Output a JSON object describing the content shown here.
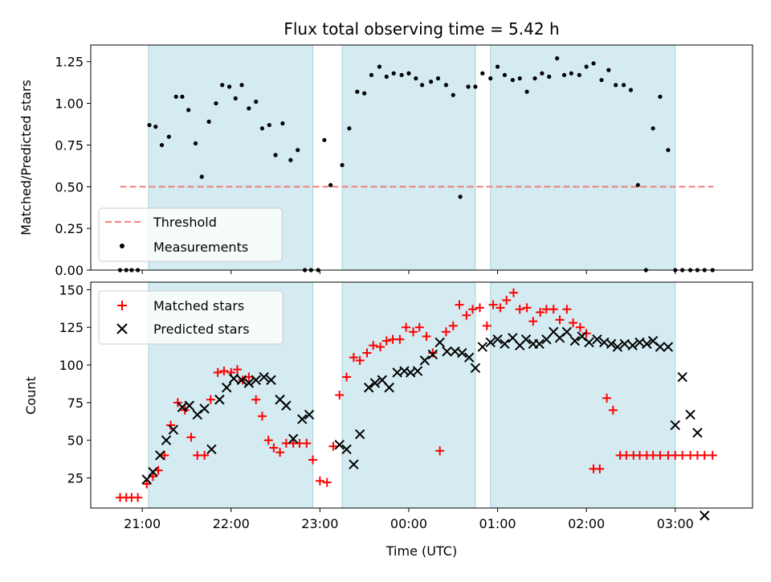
{
  "chart_data": [
    {
      "type": "scatter",
      "title": "Flux total observing time = 5.42 h",
      "xlabel": "",
      "ylabel": "Matched/Predicted stars",
      "ylim": [
        0,
        1.35
      ],
      "yticks": [
        "0.00",
        "0.25",
        "0.50",
        "0.75",
        "1.00",
        "1.25"
      ],
      "ytick_values": [
        0,
        0.25,
        0.5,
        0.75,
        1.0,
        1.25
      ],
      "legend_position": "lower-left",
      "threshold": {
        "name": "Threshold",
        "value": 0.5,
        "x_range": [
          20.75,
          27.43
        ],
        "color": "#f08080"
      },
      "shaded_intervals": [
        [
          21.07,
          22.92
        ],
        [
          23.25,
          24.75
        ],
        [
          24.92,
          27.0
        ]
      ],
      "shade_color": "#d3ebf1",
      "series": [
        {
          "name": "Measurements",
          "color": "#000000",
          "marker": "dot",
          "x": [
            20.75,
            20.82,
            20.88,
            20.95,
            21.08,
            21.15,
            21.22,
            21.3,
            21.38,
            21.45,
            21.52,
            21.6,
            21.67,
            21.75,
            21.83,
            21.9,
            21.98,
            22.05,
            22.12,
            22.2,
            22.28,
            22.35,
            22.43,
            22.5,
            22.58,
            22.67,
            22.75,
            22.83,
            22.9,
            22.98,
            23.05,
            23.12,
            23.25,
            23.33,
            23.42,
            23.5,
            23.58,
            23.67,
            23.75,
            23.83,
            23.92,
            24.0,
            24.08,
            24.15,
            24.25,
            24.33,
            24.42,
            24.5,
            24.58,
            24.67,
            24.75,
            24.83,
            24.92,
            25.0,
            25.08,
            25.17,
            25.25,
            25.33,
            25.42,
            25.5,
            25.58,
            25.67,
            25.75,
            25.83,
            25.92,
            26.0,
            26.08,
            26.17,
            26.25,
            26.33,
            26.42,
            26.5,
            26.58,
            26.67,
            26.75,
            26.83,
            26.92,
            27.0,
            27.08,
            27.17,
            27.25,
            27.33,
            27.42
          ],
          "y": [
            0,
            0,
            0,
            0,
            0.87,
            0.86,
            0.75,
            0.8,
            1.04,
            1.04,
            0.96,
            0.76,
            0.56,
            0.89,
            1.0,
            1.11,
            1.1,
            1.03,
            1.11,
            0.97,
            1.01,
            0.85,
            0.87,
            0.69,
            0.88,
            0.66,
            0.72,
            0,
            0,
            0,
            0.78,
            0.51,
            0.63,
            0.85,
            1.07,
            1.06,
            1.17,
            1.22,
            1.16,
            1.18,
            1.17,
            1.18,
            1.15,
            1.11,
            1.13,
            1.15,
            1.11,
            1.05,
            0.44,
            1.1,
            1.1,
            1.18,
            1.15,
            1.22,
            1.17,
            1.14,
            1.15,
            1.07,
            1.15,
            1.18,
            1.16,
            1.27,
            1.17,
            1.18,
            1.17,
            1.22,
            1.24,
            1.14,
            1.2,
            1.11,
            1.11,
            1.08,
            0.51,
            0,
            0.85,
            1.04,
            0.72,
            0,
            0,
            0,
            0,
            0,
            0
          ]
        }
      ]
    },
    {
      "type": "scatter",
      "xlabel": "Time (UTC)",
      "ylabel": "Count",
      "xlim": [
        20.42,
        27.87
      ],
      "ylim": [
        5,
        155
      ],
      "xticks": [
        "21:00",
        "22:00",
        "23:00",
        "00:00",
        "01:00",
        "02:00",
        "03:00"
      ],
      "xtick_values": [
        21,
        22,
        23,
        24,
        25,
        26,
        27
      ],
      "yticks": [
        "25",
        "50",
        "75",
        "100",
        "125",
        "150"
      ],
      "ytick_values": [
        25,
        50,
        75,
        100,
        125,
        150
      ],
      "legend_position": "top-left",
      "shaded_intervals": [
        [
          21.07,
          22.92
        ],
        [
          23.25,
          24.75
        ],
        [
          24.92,
          27.0
        ]
      ],
      "shade_color": "#d3ebf1",
      "series": [
        {
          "name": "Matched stars",
          "color": "#ff0000",
          "marker": "plus",
          "x": [
            20.75,
            20.82,
            20.88,
            20.95,
            21.05,
            21.12,
            21.18,
            21.25,
            21.32,
            21.4,
            21.48,
            21.55,
            21.62,
            21.7,
            21.77,
            21.85,
            21.92,
            22.0,
            22.07,
            22.13,
            22.2,
            22.28,
            22.35,
            22.42,
            22.48,
            22.55,
            22.62,
            22.7,
            22.77,
            22.85,
            22.92,
            23.0,
            23.08,
            23.15,
            23.22,
            23.3,
            23.38,
            23.45,
            23.53,
            23.6,
            23.68,
            23.75,
            23.82,
            23.9,
            23.97,
            24.05,
            24.12,
            24.2,
            24.27,
            24.35,
            24.42,
            24.5,
            24.57,
            24.65,
            24.72,
            24.8,
            24.88,
            24.95,
            25.03,
            25.1,
            25.18,
            25.25,
            25.33,
            25.4,
            25.48,
            25.55,
            25.63,
            25.7,
            25.78,
            25.85,
            25.93,
            26.0,
            26.08,
            26.15,
            26.23,
            26.3,
            26.38,
            26.45,
            26.53,
            26.6,
            26.68,
            26.75,
            26.83,
            26.92,
            27.0,
            27.08,
            27.17,
            27.25,
            27.33,
            27.42
          ],
          "y": [
            12,
            12,
            12,
            12,
            21,
            26,
            30,
            40,
            60,
            75,
            70,
            52,
            40,
            40,
            77,
            95,
            96,
            95,
            97,
            90,
            92,
            77,
            66,
            50,
            45,
            42,
            48,
            48,
            48,
            48,
            37,
            23,
            22,
            46,
            80,
            92,
            105,
            103,
            108,
            113,
            112,
            116,
            117,
            117,
            125,
            122,
            125,
            119,
            108,
            43,
            122,
            126,
            140,
            133,
            137,
            138,
            126,
            140,
            138,
            143,
            148,
            137,
            138,
            129,
            135,
            137,
            137,
            130,
            137,
            128,
            125,
            121,
            31,
            31,
            78,
            70,
            40,
            40,
            40,
            40,
            40,
            40,
            40,
            40,
            40,
            40,
            40,
            40,
            40,
            40
          ]
        },
        {
          "name": "Predicted stars",
          "color": "#000000",
          "marker": "x",
          "x": [
            21.05,
            21.12,
            21.2,
            21.27,
            21.35,
            21.45,
            21.53,
            21.62,
            21.7,
            21.78,
            21.87,
            21.95,
            22.03,
            22.12,
            22.2,
            22.28,
            22.37,
            22.45,
            22.55,
            22.62,
            22.7,
            22.8,
            22.88,
            23.22,
            23.3,
            23.38,
            23.45,
            23.55,
            23.62,
            23.7,
            23.78,
            23.87,
            23.95,
            24.02,
            24.1,
            24.18,
            24.27,
            24.35,
            24.43,
            24.52,
            24.6,
            24.68,
            24.75,
            24.83,
            24.92,
            25.0,
            25.08,
            25.17,
            25.25,
            25.32,
            25.4,
            25.47,
            25.55,
            25.63,
            25.7,
            25.78,
            25.87,
            25.95,
            26.03,
            26.12,
            26.2,
            26.28,
            26.35,
            26.43,
            26.52,
            26.6,
            26.68,
            26.75,
            26.83,
            26.92,
            27.0,
            27.08,
            27.17,
            27.25,
            27.33
          ],
          "y": [
            24,
            29,
            40,
            50,
            57,
            72,
            73,
            67,
            71,
            44,
            77,
            85,
            91,
            90,
            88,
            90,
            92,
            90,
            77,
            73,
            51,
            64,
            67,
            47,
            44,
            34,
            54,
            85,
            88,
            90,
            85,
            95,
            96,
            95,
            96,
            103,
            107,
            115,
            109,
            109,
            108,
            105,
            98,
            112,
            115,
            117,
            114,
            118,
            113,
            117,
            114,
            114,
            117,
            122,
            118,
            122,
            116,
            119,
            115,
            117,
            115,
            114,
            112,
            114,
            113,
            115,
            114,
            116,
            112,
            112,
            60,
            92,
            67,
            55,
            0
          ]
        }
      ]
    }
  ]
}
